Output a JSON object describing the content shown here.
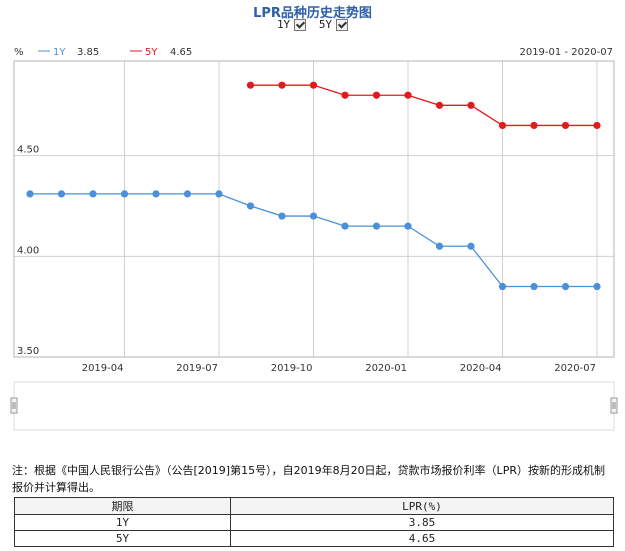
{
  "header": {
    "title": "LPR品种历史走势图",
    "toggle_1y": "1Y",
    "toggle_5y": "5Y"
  },
  "legend": {
    "unit": "%",
    "items": [
      {
        "label": "1Y",
        "value": "3.85",
        "color": "#4a90d9"
      },
      {
        "label": "5Y",
        "value": "4.65",
        "color": "#e31a1c"
      }
    ],
    "range": "2019-01 - 2020-07"
  },
  "chart_data": {
    "type": "line",
    "title": "LPR品种历史走势图",
    "ylim": [
      3.5,
      4.97
    ],
    "yticks": [
      "4.50",
      "4.00",
      "3.50"
    ],
    "x_ticks": [
      {
        "label": "2019-04",
        "x": "2019-04"
      },
      {
        "label": "2019-07",
        "x": "2019-07"
      },
      {
        "label": "2019-10",
        "x": "2019-10"
      },
      {
        "label": "2020-01",
        "x": "2020-01"
      },
      {
        "label": "2020-04",
        "x": "2020-04"
      },
      {
        "label": "2020-07",
        "x": "2020-07"
      }
    ],
    "grid": true,
    "series": [
      {
        "name": "1Y",
        "color": "#4a90d9",
        "points": [
          {
            "x": "2019-01",
            "y": 4.31
          },
          {
            "x": "2019-02",
            "y": 4.31
          },
          {
            "x": "2019-03",
            "y": 4.31
          },
          {
            "x": "2019-04",
            "y": 4.31
          },
          {
            "x": "2019-05",
            "y": 4.31
          },
          {
            "x": "2019-06",
            "y": 4.31
          },
          {
            "x": "2019-07",
            "y": 4.31
          },
          {
            "x": "2019-08",
            "y": 4.25
          },
          {
            "x": "2019-09",
            "y": 4.2
          },
          {
            "x": "2019-10",
            "y": 4.2
          },
          {
            "x": "2019-11",
            "y": 4.15
          },
          {
            "x": "2019-12",
            "y": 4.15
          },
          {
            "x": "2020-01",
            "y": 4.15
          },
          {
            "x": "2020-02",
            "y": 4.05
          },
          {
            "x": "2020-03",
            "y": 4.05
          },
          {
            "x": "2020-04",
            "y": 3.85
          },
          {
            "x": "2020-05",
            "y": 3.85
          },
          {
            "x": "2020-06",
            "y": 3.85
          },
          {
            "x": "2020-07",
            "y": 3.85
          }
        ]
      },
      {
        "name": "5Y",
        "color": "#e31a1c",
        "points": [
          {
            "x": "2019-08",
            "y": 4.85
          },
          {
            "x": "2019-09",
            "y": 4.85
          },
          {
            "x": "2019-10",
            "y": 4.85
          },
          {
            "x": "2019-11",
            "y": 4.8
          },
          {
            "x": "2019-12",
            "y": 4.8
          },
          {
            "x": "2020-01",
            "y": 4.8
          },
          {
            "x": "2020-02",
            "y": 4.75
          },
          {
            "x": "2020-03",
            "y": 4.75
          },
          {
            "x": "2020-04",
            "y": 4.65
          },
          {
            "x": "2020-05",
            "y": 4.65
          },
          {
            "x": "2020-06",
            "y": 4.65
          },
          {
            "x": "2020-07",
            "y": 4.65
          }
        ]
      }
    ]
  },
  "note": "注：根据《中国人民银行公告》（公告[2019]第15号），自2019年8月20日起，贷款市场报价利率（LPR）按新的形成机制报价并计算得出。",
  "table": {
    "headers": [
      "期限",
      "LPR(%)"
    ],
    "rows": [
      [
        "1Y",
        "3.85"
      ],
      [
        "5Y",
        "4.65"
      ]
    ]
  }
}
